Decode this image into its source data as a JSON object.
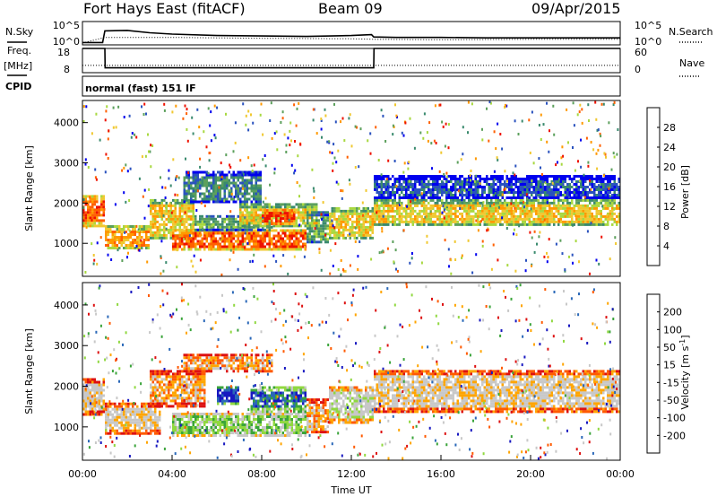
{
  "header": {
    "station": "Fort Hays East (fitACF)",
    "beam": "Beam 09",
    "date": "09/Apr/2015"
  },
  "top_labels": {
    "nsky": "N.Sky",
    "freq_line1": "Freq.",
    "freq_line2": "[MHz]",
    "cpid": "CPID",
    "nsearch": "N.Search",
    "nave": "Nave",
    "cpid_value": "normal (fast) 151 IF"
  },
  "colors": {
    "power_scale": [
      "#0000ee",
      "#2a52be",
      "#3a8a6e",
      "#5ca05c",
      "#a8d840",
      "#f0c830",
      "#ff9900",
      "#ff6000",
      "#ee1100"
    ],
    "velocity_scale": [
      "#dd1111",
      "#ff5a00",
      "#ffa500",
      "#c8c8c8",
      "#c8c8c8",
      "#90d840",
      "#3aa43a",
      "#2a68b8",
      "#1818c0"
    ]
  },
  "chart_data": [
    {
      "type": "line",
      "name": "nsky-nsearch",
      "series": [
        {
          "name": "N.Sky",
          "x": [
            0,
            0.9,
            1.0,
            2,
            3,
            4,
            6,
            8,
            10,
            12,
            12.9,
            13,
            14,
            16,
            18,
            20,
            22,
            24
          ],
          "values": [
            0.5,
            0.5,
            3.0,
            3.1,
            2.6,
            2.3,
            2.0,
            1.9,
            1.8,
            2.0,
            2.2,
            1.7,
            1.6,
            1.6,
            1.5,
            1.5,
            1.5,
            1.5
          ]
        },
        {
          "name": "N.Search",
          "x": [
            0,
            1,
            4,
            8,
            12,
            13,
            16,
            20,
            24
          ],
          "values": [
            0.4,
            1.6,
            1.6,
            1.4,
            1.3,
            1.2,
            1.1,
            1.2,
            1.2
          ]
        }
      ],
      "yticks": [
        "10^5",
        "10^0"
      ],
      "yticks_right": [
        "10^5",
        "10^0"
      ],
      "ylim": [
        0,
        5
      ]
    },
    {
      "type": "line",
      "name": "freq-nave",
      "series": [
        {
          "name": "Freq",
          "x": [
            0,
            1,
            1.01,
            13,
            13.01,
            24
          ],
          "values": [
            18,
            18,
            10,
            10,
            18,
            18
          ]
        },
        {
          "name": "Nave",
          "x": [
            0,
            24
          ],
          "values": [
            11,
            11
          ]
        }
      ],
      "yticks": [
        "18",
        "8"
      ],
      "yticks_right": [
        "60",
        "0"
      ],
      "ylim": [
        8,
        18
      ]
    },
    {
      "type": "heatmap",
      "name": "power",
      "ylabel": "Slant Range [km]",
      "yticks": [
        1000,
        2000,
        3000,
        4000
      ],
      "ylim": [
        180,
        4550
      ],
      "xlim": [
        0,
        24
      ],
      "colorbar_label": "Power [dB]",
      "colorbar_ticks": [
        "28",
        "24",
        "20",
        "16",
        "12",
        "8",
        "4"
      ],
      "bands": [
        {
          "x0": 0,
          "x1": 1,
          "r0": 1450,
          "r1": 2200,
          "level": 7
        },
        {
          "x0": 1,
          "x1": 3,
          "r0": 850,
          "r1": 1450,
          "level": 6
        },
        {
          "x0": 3,
          "x1": 5,
          "r0": 1100,
          "r1": 2100,
          "level": 5
        },
        {
          "x0": 4.5,
          "x1": 8,
          "r0": 2000,
          "r1": 2800,
          "level": 2
        },
        {
          "x0": 4,
          "x1": 10,
          "r0": 850,
          "r1": 1350,
          "level": 7
        },
        {
          "x0": 5,
          "x1": 8.5,
          "r0": 1350,
          "r1": 1700,
          "level": 3
        },
        {
          "x0": 7,
          "x1": 10.5,
          "r0": 1400,
          "r1": 2000,
          "level": 5
        },
        {
          "x0": 8,
          "x1": 9.5,
          "r0": 1500,
          "r1": 1850,
          "level": 8
        },
        {
          "x0": 10,
          "x1": 11,
          "r0": 1000,
          "r1": 1800,
          "level": 3
        },
        {
          "x0": 11,
          "x1": 13,
          "r0": 1100,
          "r1": 1900,
          "level": 5
        },
        {
          "x0": 13,
          "x1": 24,
          "r0": 2100,
          "r1": 2700,
          "level": 1
        },
        {
          "x0": 13,
          "x1": 24,
          "r0": 1450,
          "r1": 2100,
          "level": 5
        }
      ]
    },
    {
      "type": "heatmap",
      "name": "velocity",
      "ylabel": "Slant Range [km]",
      "xlabel": "Time UT",
      "yticks": [
        1000,
        2000,
        3000,
        4000
      ],
      "ylim": [
        180,
        4550
      ],
      "xlim": [
        0,
        24
      ],
      "xticks": [
        "00:00",
        "04:00",
        "08:00",
        "12:00",
        "16:00",
        "20:00",
        "00:00"
      ],
      "colorbar_label": "Velocity [m s^-1]",
      "colorbar_ticks": [
        "200",
        "100",
        "50",
        "15",
        "-15",
        "-50",
        "-100",
        "-200"
      ],
      "bands": [
        {
          "x0": 0,
          "x1": 1,
          "r0": 1300,
          "r1": 2200,
          "level": 3
        },
        {
          "x0": 1,
          "x1": 3.5,
          "r0": 850,
          "r1": 1600,
          "level": 3
        },
        {
          "x0": 3,
          "x1": 5.5,
          "r0": 1500,
          "r1": 2400,
          "level": 2
        },
        {
          "x0": 4.5,
          "x1": 8.5,
          "r0": 2400,
          "r1": 2800,
          "level": 2
        },
        {
          "x0": 4,
          "x1": 10,
          "r0": 800,
          "r1": 1350,
          "level": 5
        },
        {
          "x0": 6,
          "x1": 7,
          "r0": 1600,
          "r1": 2000,
          "level": 8
        },
        {
          "x0": 7.5,
          "x1": 10,
          "r0": 1400,
          "r1": 2000,
          "level": 7
        },
        {
          "x0": 10,
          "x1": 11,
          "r0": 850,
          "r1": 1700,
          "level": 2
        },
        {
          "x0": 11,
          "x1": 13,
          "r0": 1100,
          "r1": 2000,
          "level": 4
        },
        {
          "x0": 13,
          "x1": 24,
          "r0": 1350,
          "r1": 2400,
          "level": 3
        }
      ]
    }
  ]
}
